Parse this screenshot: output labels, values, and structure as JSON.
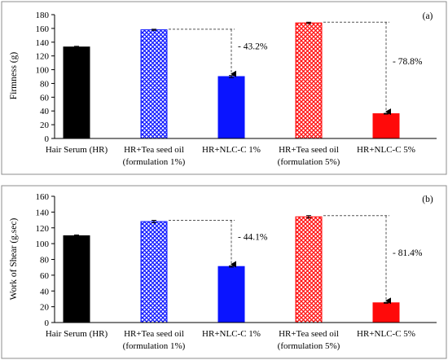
{
  "colors": {
    "hair_serum": "#000000",
    "blue": "#0a14ff",
    "red": "#ff0a0a",
    "pattern_bg": "#ffffff",
    "axis": "#000000",
    "dashed": "#555555",
    "frame": "#8c8c8c"
  },
  "chart_data": [
    {
      "type": "bar",
      "panel_label": "(a)",
      "ylabel": "Firmness (g)",
      "ylim": [
        0,
        180
      ],
      "yticks": [
        0,
        20,
        40,
        60,
        80,
        100,
        120,
        140,
        160,
        180
      ],
      "grid": false,
      "legend": "none",
      "categories": [
        [
          "Hair Serum (HR)"
        ],
        [
          "HR+Tea seed oil",
          "(formulation 1%)"
        ],
        [
          "HR+NLC-C 1%"
        ],
        [
          "HR+Tea seed oil",
          "(formulation 5%)"
        ],
        [
          "HR+NLC-C 5%"
        ]
      ],
      "values": [
        133,
        158,
        90,
        168,
        36
      ],
      "errors": [
        1,
        0.8,
        1.5,
        1,
        0.5
      ],
      "fills": [
        "solid-black",
        "pattern-blue",
        "solid-blue",
        "pattern-red",
        "solid-red"
      ],
      "annotations": [
        {
          "from_bar": 1,
          "to_bar": 2,
          "text": "- 43.2%"
        },
        {
          "from_bar": 3,
          "to_bar": 4,
          "text": "- 78.8%"
        }
      ]
    },
    {
      "type": "bar",
      "panel_label": "(b)",
      "ylabel": "Work of Shear (g.sec)",
      "ylim": [
        0,
        160
      ],
      "yticks": [
        0,
        20,
        40,
        60,
        80,
        100,
        120,
        140,
        160
      ],
      "grid": false,
      "legend": "none",
      "categories": [
        [
          "Hair Serum (HR)"
        ],
        [
          "HR+Tea seed oil",
          "(formulation 1%)"
        ],
        [
          "HR+NLC-C 1%"
        ],
        [
          "HR+Tea seed oil",
          "(formulation 5%)"
        ],
        [
          "HR+NLC-C 5%"
        ]
      ],
      "values": [
        110,
        128,
        71,
        134,
        25
      ],
      "errors": [
        1,
        1.5,
        0.8,
        1.5,
        0.5
      ],
      "fills": [
        "solid-black",
        "pattern-blue",
        "solid-blue",
        "pattern-red",
        "solid-red"
      ],
      "annotations": [
        {
          "from_bar": 1,
          "to_bar": 2,
          "text": "- 44.1%"
        },
        {
          "from_bar": 3,
          "to_bar": 4,
          "text": "- 81.4%"
        }
      ]
    }
  ]
}
